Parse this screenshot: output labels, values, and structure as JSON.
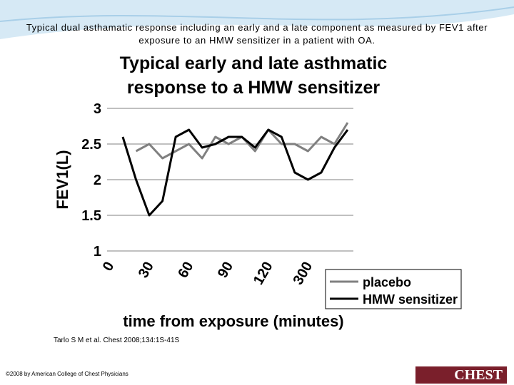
{
  "slide_title": "Typical dual asthamatic response including an early and a late component as measured by FEV1 after exposure to an HMW sensitizer in a patient with OA.",
  "citation": "Tarlo S M et al. Chest 2008;134:1S-41S",
  "footer": "©2008 by American College of Chest Physicians",
  "logo": "CHEST",
  "chart_data": {
    "type": "line",
    "title": "Typical early and late asthmatic response to a HMW sensitizer",
    "x_label": "time from exposure (minutes)",
    "y_label": "FEV1(L)",
    "categories": [
      "0",
      null,
      null,
      "30",
      null,
      null,
      "60",
      null,
      null,
      "90",
      null,
      null,
      "120",
      null,
      null,
      "300",
      null,
      null
    ],
    "series": [
      {
        "name": "placebo",
        "color": "#808080",
        "values": [
          null,
          2.4,
          2.5,
          2.3,
          2.4,
          2.5,
          2.3,
          2.6,
          2.5,
          2.6,
          2.4,
          2.7,
          2.5,
          2.5,
          2.4,
          2.6,
          2.5,
          2.8
        ]
      },
      {
        "name": "HMW sensitizer",
        "color": "#000000",
        "values": [
          2.6,
          2.0,
          1.5,
          1.7,
          2.6,
          2.7,
          2.45,
          2.5,
          2.6,
          2.6,
          2.45,
          2.7,
          2.6,
          2.1,
          2.0,
          2.1,
          2.45,
          2.7
        ]
      }
    ],
    "ylim": [
      1,
      3
    ],
    "yticks": [
      1,
      1.5,
      2,
      2.5,
      3
    ],
    "grid": true,
    "legend": "bottom-right"
  }
}
